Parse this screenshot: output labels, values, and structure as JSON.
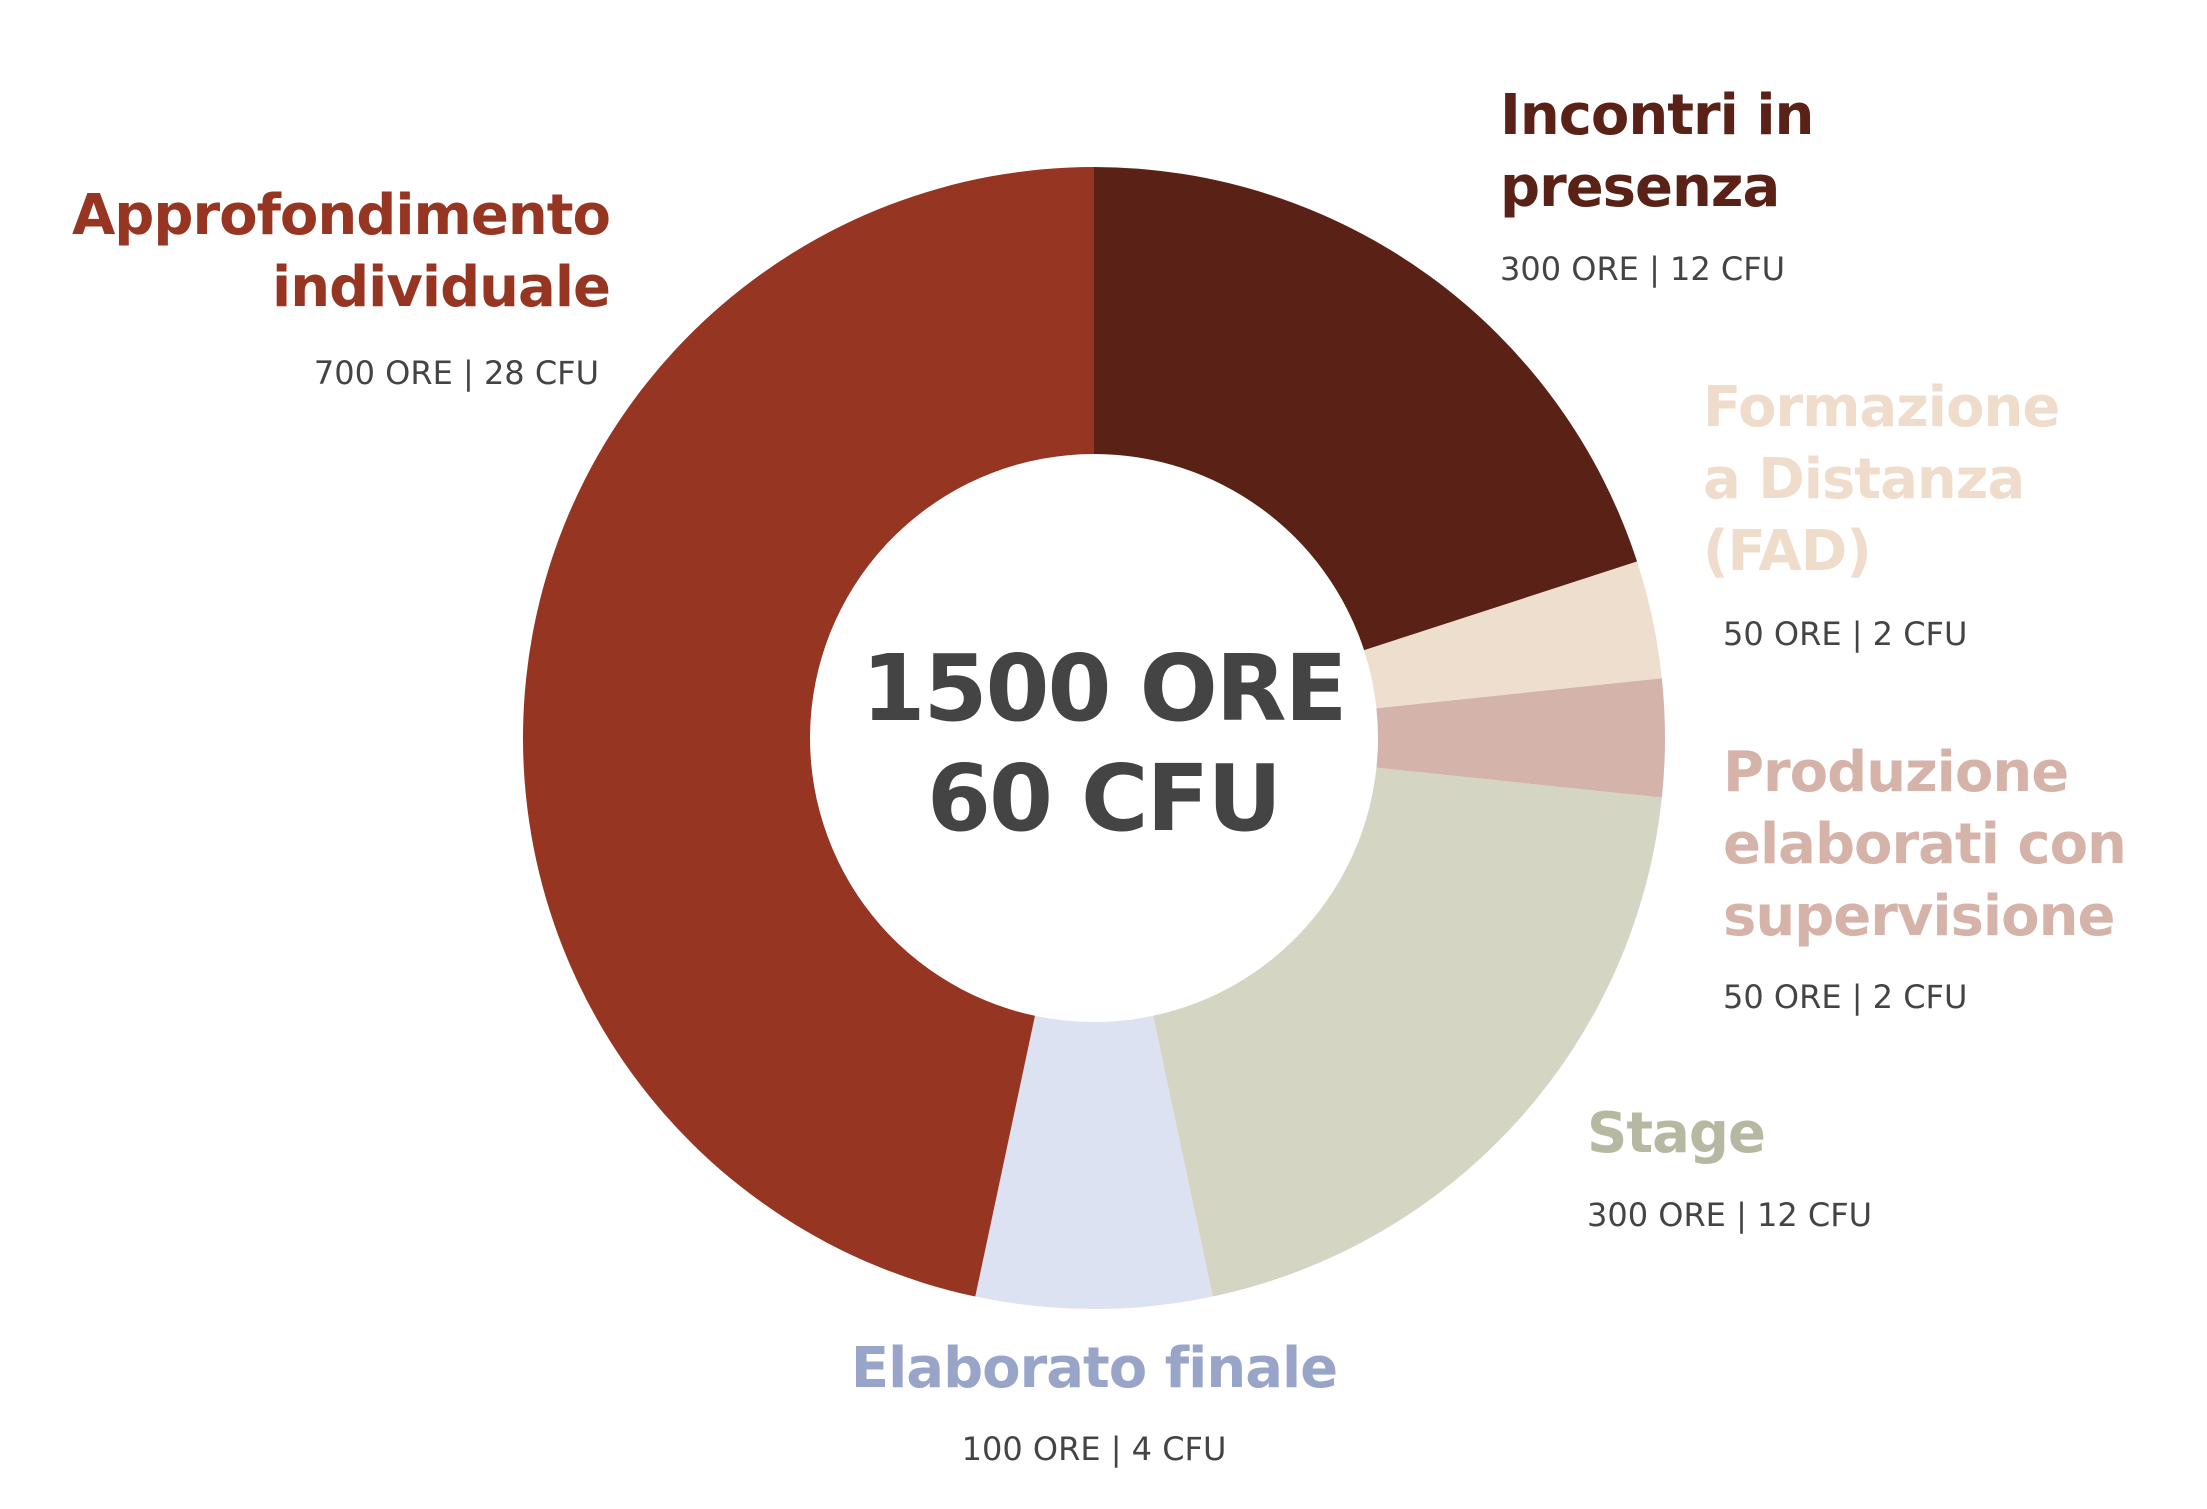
{
  "chart_data": {
    "type": "donut",
    "categories": [
      "Incontri   in\npresenza",
      "Formazione\na Distanza\n(FAD)",
      "Produzione\nelaborati con\nsupervisione",
      "Stage",
      "Elaborato finale",
      "Approfondimento\nindividuale"
    ],
    "values": [
      300,
      50,
      50,
      300,
      100,
      700
    ],
    "value_labels": [
      "300 ORE | 12 CFU",
      "50 ORE | 2 CFU",
      "50 ORE | 2 CFU",
      "300 ORE | 12 CFU",
      "100 ORE | 4 CFU",
      "700 ORE | 28 CFU"
    ],
    "colors": [
      "#5a2116",
      "#eddece",
      "#d4b3aa",
      "#d4d6c3",
      "#dde2f3",
      "#963522"
    ],
    "label_colors": [
      "#5a2116",
      "#efdccb",
      "#d6b3a9",
      "#b7b8a2",
      "#98a5c8",
      "#963522"
    ],
    "center_text": [
      "1500 ORE",
      "60 CFU"
    ]
  }
}
